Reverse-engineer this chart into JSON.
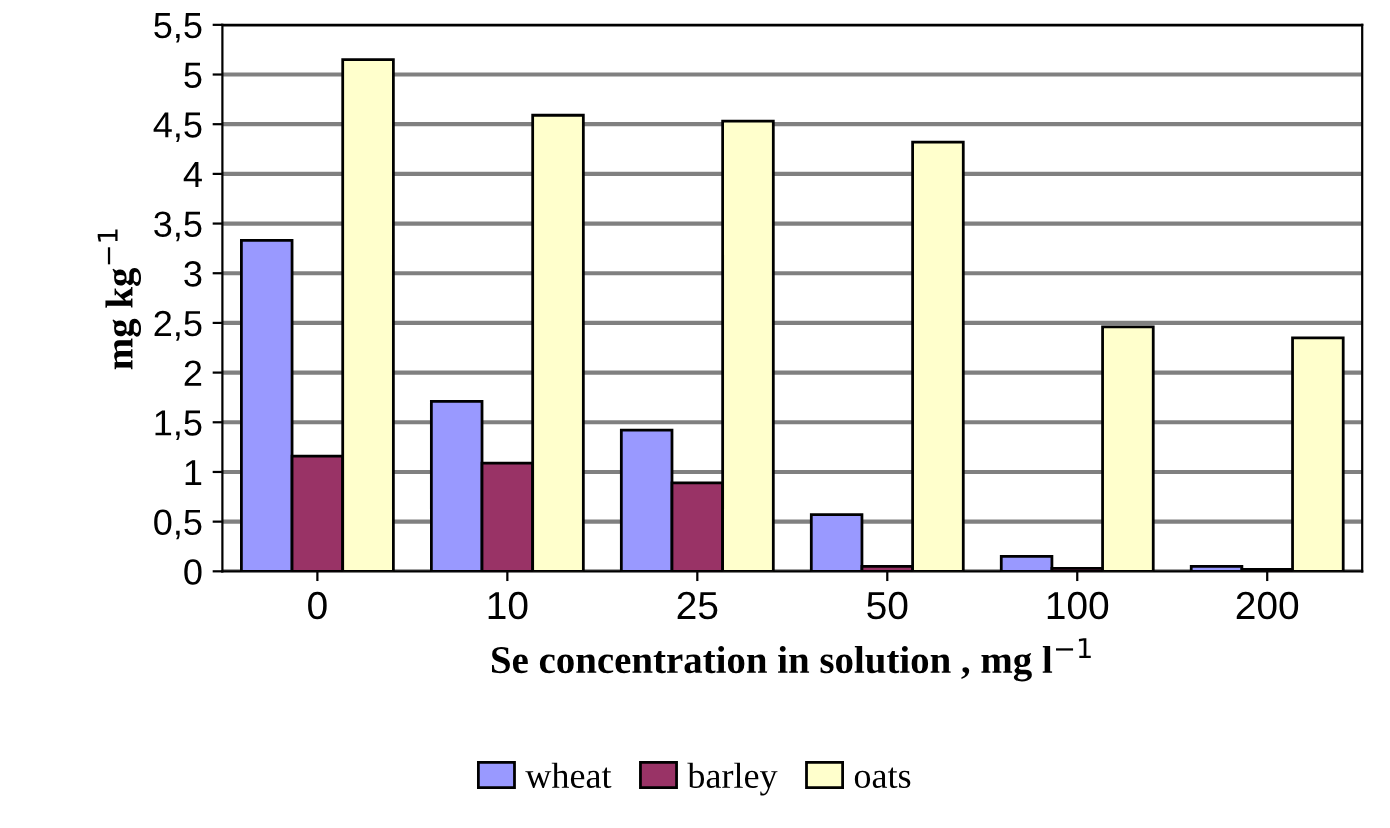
{
  "chart_data": {
    "type": "bar",
    "xlabel": "Se concentration in solution , mg l$^{−1}$",
    "ylabel": "mg kg$^{−1}$",
    "categories": [
      "0",
      "10",
      "25",
      "50",
      "100",
      "200"
    ],
    "series": [
      {
        "name": "wheat",
        "color": "#9999ff",
        "values": [
          3.33,
          1.71,
          1.42,
          0.57,
          0.15,
          0.05
        ]
      },
      {
        "name": "barley",
        "color": "#993366",
        "values": [
          1.16,
          1.09,
          0.89,
          0.05,
          0.03,
          0.02
        ]
      },
      {
        "name": "oats",
        "color": "#ffffcc",
        "values": [
          5.15,
          4.59,
          4.53,
          4.32,
          2.46,
          2.35
        ]
      }
    ],
    "ylim": [
      0,
      5.5
    ],
    "yticks": [
      0,
      {
        "value": 0.5,
        "label": "0,5"
      },
      1,
      {
        "value": 1.5,
        "label": "1,5"
      },
      2,
      {
        "value": 2.5,
        "label": "2,5"
      },
      3,
      {
        "value": 3.5,
        "label": "3,5"
      },
      4,
      {
        "value": 4.5,
        "label": "4,5"
      },
      5,
      {
        "value": 5.5,
        "label": "5,5"
      }
    ],
    "grid": "y",
    "legend": "bottom"
  }
}
